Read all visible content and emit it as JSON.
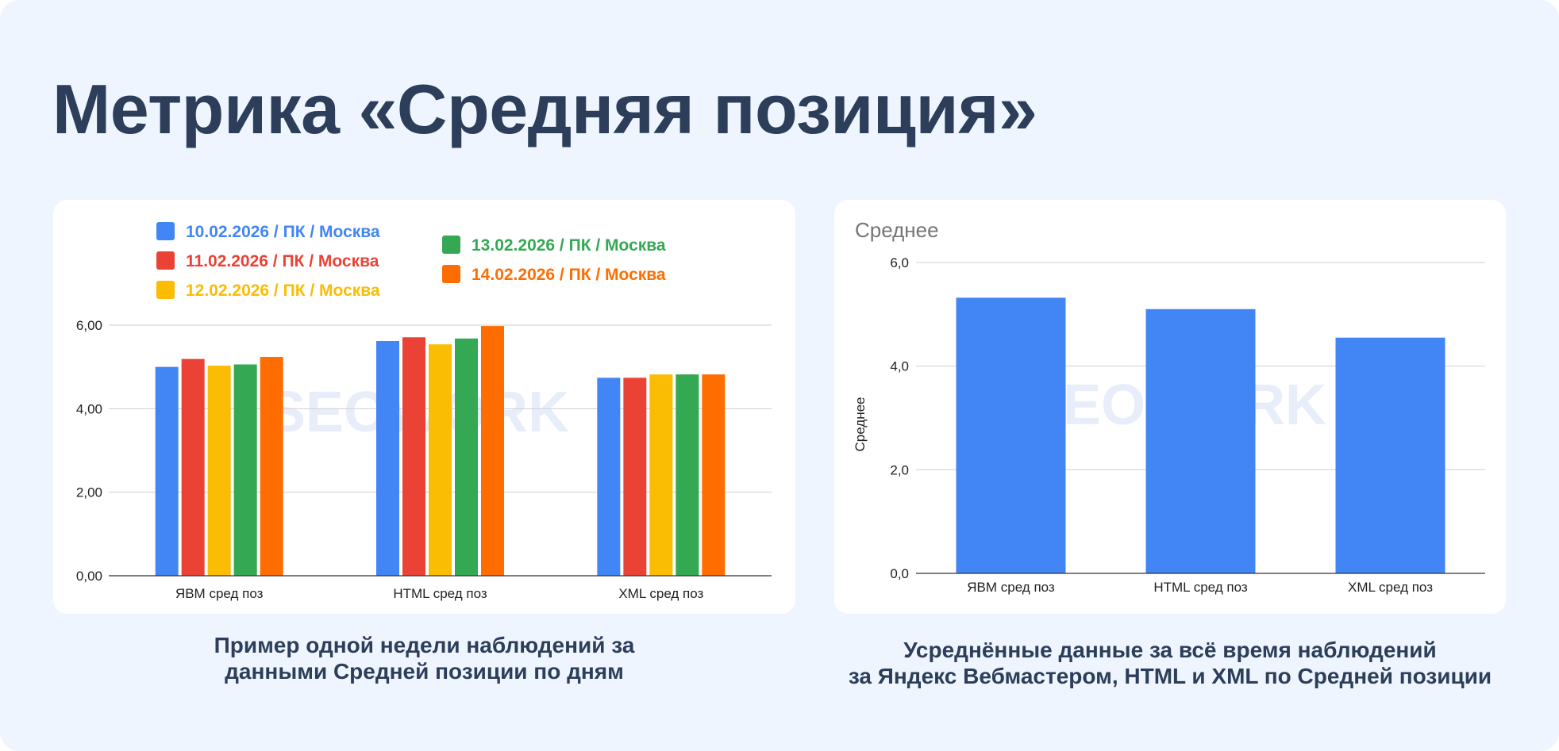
{
  "title": "Метрика «Средняя позиция»",
  "watermark": "SEOWORK",
  "colors": {
    "background": "#eff5fe",
    "title": "#2c3e5a",
    "series": [
      "#4285f4",
      "#ea4335",
      "#fbbc04",
      "#34a853",
      "#ff6d01"
    ]
  },
  "chart_data": [
    {
      "type": "bar",
      "title": "",
      "xlabel": "",
      "ylabel": "",
      "categories": [
        "ЯВМ сред поз",
        "HTML сред поз",
        "XML сред поз"
      ],
      "y_ticks": [
        "0,00",
        "2,00",
        "4,00",
        "6,00"
      ],
      "ylim": [
        0,
        6
      ],
      "grid": true,
      "legend": "top",
      "series": [
        {
          "name": "10.02.2026 / ПК / Москва",
          "color": "#4285f4",
          "values": [
            5.0,
            5.62,
            4.74
          ]
        },
        {
          "name": "11.02.2026 / ПК / Москва",
          "color": "#ea4335",
          "values": [
            5.19,
            5.71,
            4.74
          ]
        },
        {
          "name": "12.02.2026 / ПК / Москва",
          "color": "#fbbc04",
          "values": [
            5.03,
            5.54,
            4.82
          ]
        },
        {
          "name": "13.02.2026 / ПК / Москва",
          "color": "#34a853",
          "values": [
            5.06,
            5.68,
            4.82
          ]
        },
        {
          "name": "14.02.2026 / ПК / Москва",
          "color": "#ff6d01",
          "values": [
            5.24,
            5.98,
            4.82
          ]
        }
      ]
    },
    {
      "type": "bar",
      "title": "Среднее",
      "xlabel": "",
      "ylabel": "Среднее",
      "categories": [
        "ЯВМ сред поз",
        "HTML сред поз",
        "XML сред поз"
      ],
      "y_ticks": [
        "0,0",
        "2,0",
        "4,0",
        "6,0"
      ],
      "ylim": [
        0,
        6
      ],
      "grid": true,
      "series": [
        {
          "color": "#4285f4",
          "values": [
            5.32,
            5.1,
            4.55
          ]
        }
      ]
    }
  ],
  "captions": {
    "left": [
      "Пример одной недели наблюдений за",
      "данными Средней позиции по дням"
    ],
    "right": [
      "Усреднённые данные за всё время наблюдений",
      "за Яндекс Вебмастером, HTML и XML по Средней позиции"
    ]
  }
}
